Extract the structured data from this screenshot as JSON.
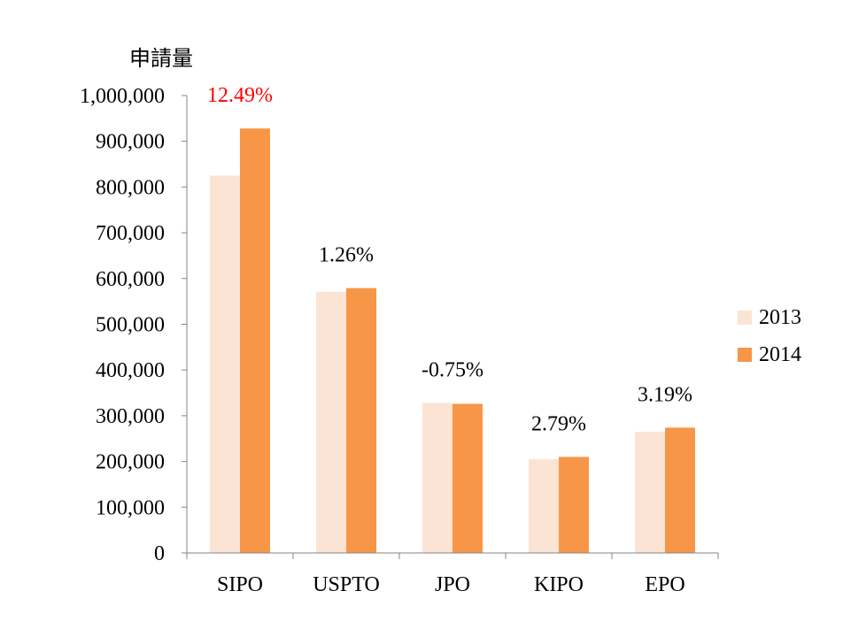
{
  "chart_data": {
    "type": "bar",
    "ylabel": "申請量",
    "xlabel": "",
    "title": "",
    "ylim": [
      0,
      1000000
    ],
    "ytick_step": 100000,
    "ytick_labels": [
      "0",
      "100,000",
      "200,000",
      "300,000",
      "400,000",
      "500,000",
      "600,000",
      "700,000",
      "800,000",
      "900,000",
      "1,000,000"
    ],
    "categories": [
      "SIPO",
      "USPTO",
      "JPO",
      "KIPO",
      "EPO"
    ],
    "series": [
      {
        "name": "2013",
        "color": "#fce4d4",
        "values": [
          825000,
          571000,
          328000,
          205000,
          265000
        ]
      },
      {
        "name": "2014",
        "color": "#f79646",
        "values": [
          928000,
          579000,
          326000,
          210000,
          274000
        ]
      }
    ],
    "annotations": [
      {
        "category": "SIPO",
        "text": "12.49%",
        "color": "#ff0000"
      },
      {
        "category": "USPTO",
        "text": "1.26%",
        "color": "#000000"
      },
      {
        "category": "JPO",
        "text": "-0.75%",
        "color": "#000000"
      },
      {
        "category": "KIPO",
        "text": "2.79%",
        "color": "#000000"
      },
      {
        "category": "EPO",
        "text": "3.19%",
        "color": "#000000"
      }
    ],
    "legend": {
      "position": "right"
    },
    "grid": false
  }
}
